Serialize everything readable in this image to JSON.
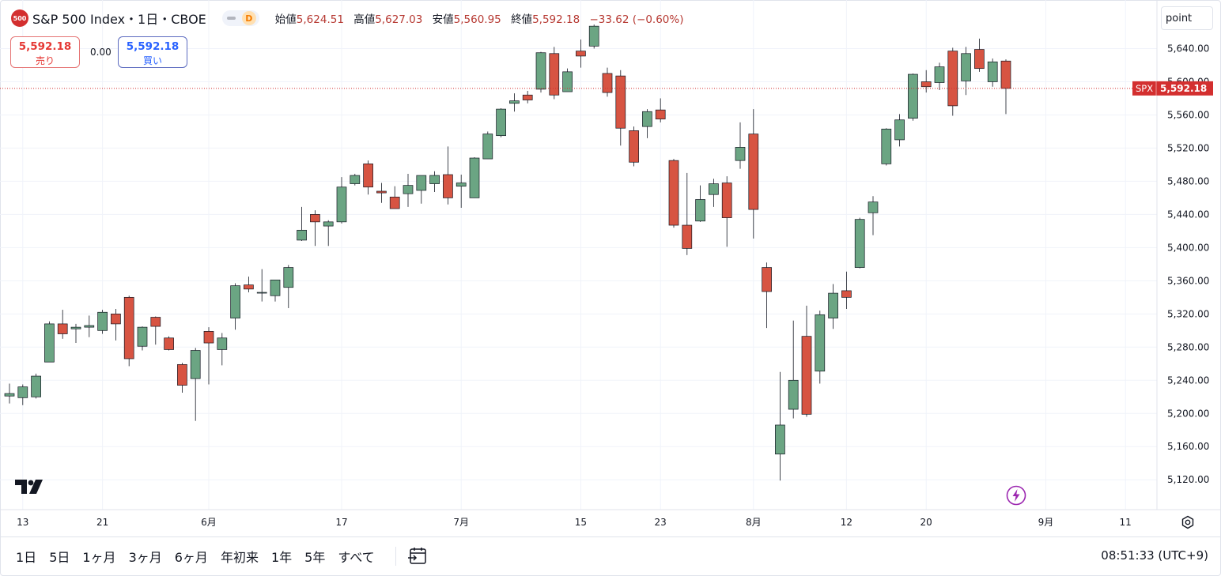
{
  "header": {
    "symbol_badge": "500",
    "title": "S&P 500 Index・1日・CBOE",
    "interval_badge": "D",
    "ohlc": {
      "open_label": "始値",
      "open": "5,624.51",
      "high_label": "高値",
      "high": "5,627.03",
      "low_label": "安値",
      "low": "5,560.95",
      "close_label": "終値",
      "close": "5,592.18",
      "change": "−33.62 (−0.60%)"
    }
  },
  "trade": {
    "sell_price": "5,592.18",
    "sell_label": "売り",
    "spread": "0.00",
    "buy_price": "5,592.18",
    "buy_label": "買い"
  },
  "toolbar": {
    "scale_mode": "point"
  },
  "price_tag": {
    "symbol": "SPX",
    "value": "5,592.18"
  },
  "bottom": {
    "ranges": [
      "1日",
      "5日",
      "1ヶ月",
      "3ヶ月",
      "6ヶ月",
      "年初来",
      "1年",
      "5年",
      "すべて"
    ],
    "clock": "08:51:33 (UTC+9)"
  },
  "colors": {
    "up": "#6ba583",
    "down": "#d75442",
    "grid": "#f0f3fa",
    "price_line": "#d32f2f"
  },
  "chart_data": {
    "type": "candlestick",
    "y_ticks": [
      "5,120.00",
      "5,160.00",
      "5,200.00",
      "5,240.00",
      "5,280.00",
      "5,320.00",
      "5,360.00",
      "5,400.00",
      "5,440.00",
      "5,480.00",
      "5,520.00",
      "5,560.00",
      "5,600.00",
      "5,640.00"
    ],
    "y_tick_values": [
      5120,
      5160,
      5200,
      5240,
      5280,
      5320,
      5360,
      5400,
      5440,
      5480,
      5520,
      5560,
      5600,
      5640
    ],
    "ylim": [
      5084,
      5670
    ],
    "x_labels": [
      {
        "label": "13",
        "index": 1
      },
      {
        "label": "21",
        "index": 7
      },
      {
        "label": "6月",
        "index": 15
      },
      {
        "label": "17",
        "index": 25
      },
      {
        "label": "7月",
        "index": 34
      },
      {
        "label": "15",
        "index": 43
      },
      {
        "label": "23",
        "index": 49
      },
      {
        "label": "8月",
        "index": 56
      },
      {
        "label": "12",
        "index": 63
      },
      {
        "label": "20",
        "index": 69
      },
      {
        "label": "9月",
        "index": 78
      },
      {
        "label": "11",
        "index": 84
      }
    ],
    "candles": [
      [
        5221,
        5236,
        5212,
        5224
      ],
      [
        5219,
        5235,
        5210,
        5232
      ],
      [
        5220,
        5248,
        5218,
        5245
      ],
      [
        5262,
        5311,
        5262,
        5308
      ],
      [
        5308,
        5325,
        5290,
        5296
      ],
      [
        5302,
        5308,
        5285,
        5304
      ],
      [
        5304,
        5318,
        5292,
        5306
      ],
      [
        5300,
        5325,
        5296,
        5322
      ],
      [
        5320,
        5326,
        5288,
        5308
      ],
      [
        5340,
        5342,
        5257,
        5266
      ],
      [
        5281,
        5305,
        5276,
        5304
      ],
      [
        5316,
        5317,
        5283,
        5305
      ],
      [
        5291,
        5293,
        5276,
        5277
      ],
      [
        5259,
        5261,
        5225,
        5234
      ],
      [
        5242,
        5279,
        5191,
        5276
      ],
      [
        5299,
        5304,
        5235,
        5285
      ],
      [
        5277,
        5297,
        5258,
        5291
      ],
      [
        5315,
        5357,
        5301,
        5354
      ],
      [
        5355,
        5365,
        5346,
        5350
      ],
      [
        5346,
        5374,
        5335,
        5346
      ],
      [
        5342,
        5361,
        5335,
        5361
      ],
      [
        5352,
        5379,
        5327,
        5376
      ],
      [
        5409,
        5449,
        5408,
        5421
      ],
      [
        5440,
        5445,
        5402,
        5431
      ],
      [
        5426,
        5433,
        5402,
        5431
      ],
      [
        5431,
        5485,
        5429,
        5473
      ],
      [
        5477,
        5489,
        5475,
        5487
      ],
      [
        5501,
        5505,
        5464,
        5473
      ],
      [
        5468,
        5478,
        5454,
        5466
      ],
      [
        5461,
        5474,
        5447,
        5447
      ],
      [
        5465,
        5489,
        5449,
        5475
      ],
      [
        5469,
        5483,
        5453,
        5487
      ],
      [
        5477,
        5492,
        5467,
        5487
      ],
      [
        5488,
        5522,
        5452,
        5460
      ],
      [
        5474,
        5488,
        5448,
        5478
      ],
      [
        5460,
        5509,
        5460,
        5508
      ],
      [
        5507,
        5540,
        5507,
        5537
      ],
      [
        5535,
        5568,
        5533,
        5567
      ],
      [
        5574,
        5586,
        5564,
        5577
      ],
      [
        5584,
        5589,
        5574,
        5578
      ],
      [
        5591,
        5636,
        5587,
        5635
      ],
      [
        5634,
        5642,
        5579,
        5584
      ],
      [
        5588,
        5616,
        5588,
        5612
      ],
      [
        5637,
        5651,
        5617,
        5631
      ],
      [
        5643,
        5669,
        5640,
        5667
      ],
      [
        5610,
        5617,
        5582,
        5587
      ],
      [
        5607,
        5614,
        5523,
        5544
      ],
      [
        5541,
        5546,
        5498,
        5503
      ],
      [
        5546,
        5567,
        5532,
        5564
      ],
      [
        5566,
        5580,
        5551,
        5555
      ],
      [
        5505,
        5507,
        5424,
        5427
      ],
      [
        5427,
        5490,
        5391,
        5399
      ],
      [
        5432,
        5475,
        5431,
        5458
      ],
      [
        5464,
        5483,
        5449,
        5477
      ],
      [
        5478,
        5486,
        5401,
        5436
      ],
      [
        5505,
        5551,
        5495,
        5521
      ],
      [
        5537,
        5567,
        5411,
        5446
      ],
      [
        5376,
        5382,
        5303,
        5347
      ],
      [
        5151,
        5250,
        5119,
        5186
      ],
      [
        5205,
        5312,
        5194,
        5240
      ],
      [
        5293,
        5330,
        5196,
        5199
      ],
      [
        5251,
        5324,
        5236,
        5319
      ],
      [
        5315,
        5356,
        5302,
        5345
      ],
      [
        5348,
        5371,
        5326,
        5340
      ],
      [
        5376,
        5436,
        5375,
        5434
      ],
      [
        5442,
        5462,
        5415,
        5455
      ],
      [
        5501,
        5544,
        5499,
        5543
      ],
      [
        5530,
        5561,
        5522,
        5554
      ],
      [
        5556,
        5610,
        5553,
        5609
      ],
      [
        5600,
        5614,
        5587,
        5594
      ],
      [
        5599,
        5623,
        5590,
        5618
      ],
      [
        5637,
        5641,
        5559,
        5571
      ],
      [
        5601,
        5642,
        5584,
        5634
      ],
      [
        5639,
        5652,
        5612,
        5616
      ],
      [
        5600,
        5628,
        5594,
        5624
      ],
      [
        5625,
        5627,
        5561,
        5592
      ]
    ]
  }
}
